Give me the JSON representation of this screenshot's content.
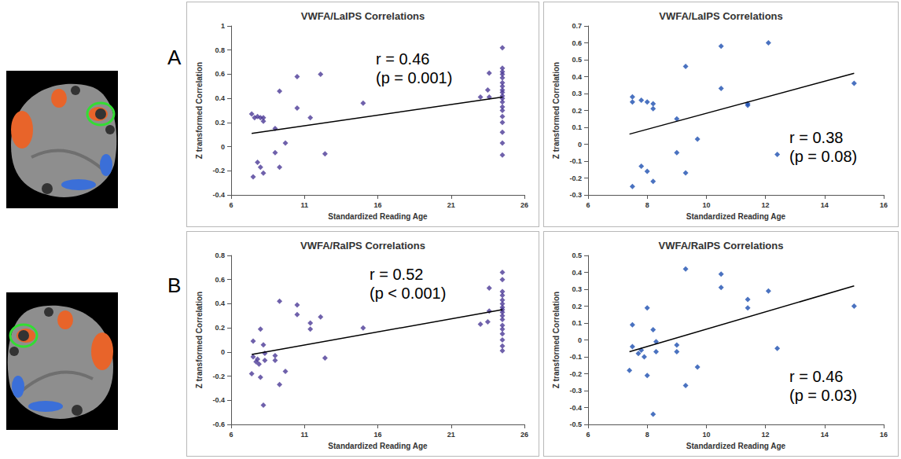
{
  "panel_letters": [
    "A",
    "B"
  ],
  "chart_data": [
    {
      "type": "scatter",
      "title": "VWFA/LaIPS Correlations",
      "x_label": "Standardized Reading Age",
      "y_label": "Z transformed Correlation",
      "xlim": [
        6,
        26
      ],
      "xticks": [
        6,
        11,
        16,
        21,
        26
      ],
      "ylim": [
        -0.4,
        1
      ],
      "yticks": [
        -0.4,
        -0.2,
        0,
        0.2,
        0.4,
        0.6,
        0.8,
        1
      ],
      "grid": false,
      "marker": "diamond",
      "annotations": [
        "r = 0.46",
        "(p = 0.001)"
      ],
      "series": [
        {
          "type": "scatter",
          "color": "#4b3a96",
          "x": [
            7.4,
            7.6,
            7.8,
            8.0,
            8.2,
            8.2,
            7.8,
            8.0,
            8.2,
            7.5,
            9.0,
            9.0,
            9.3,
            9.3,
            9.7,
            10.5,
            10.5,
            11.4,
            12.1,
            12.4,
            15.0,
            23.0,
            23.5,
            23.6,
            23.6,
            24.5,
            24.5,
            24.5,
            24.5,
            24.5,
            24.5,
            24.5,
            24.5,
            24.5,
            24.5,
            24.5,
            24.5,
            24.5,
            24.5,
            24.5,
            24.5,
            24.5,
            24.5,
            24.5
          ],
          "values": [
            0.27,
            0.24,
            0.25,
            0.24,
            0.21,
            0.24,
            -0.13,
            -0.17,
            -0.22,
            -0.25,
            0.15,
            -0.05,
            0.46,
            -0.17,
            0.03,
            0.58,
            0.32,
            0.24,
            0.6,
            -0.06,
            0.36,
            0.41,
            0.47,
            0.61,
            0.41,
            0.82,
            0.65,
            0.62,
            0.6,
            0.57,
            0.53,
            0.5,
            0.47,
            0.45,
            0.42,
            0.4,
            0.37,
            0.33,
            0.3,
            0.25,
            0.2,
            0.12,
            0.03,
            -0.07
          ]
        },
        {
          "type": "line",
          "color": "#000000",
          "line_style": "solid",
          "x": [
            7.4,
            24.5
          ],
          "values": [
            0.11,
            0.41
          ]
        }
      ]
    },
    {
      "type": "scatter",
      "title": "VWFA/LaIPS Correlations",
      "x_label": "Standardized Reading Age",
      "y_label": "Z transformed Correlation",
      "xlim": [
        6,
        16
      ],
      "xticks": [
        6,
        8,
        10,
        12,
        14,
        16
      ],
      "ylim": [
        -0.3,
        0.7
      ],
      "yticks": [
        -0.3,
        -0.2,
        -0.1,
        0,
        0.1,
        0.2,
        0.3,
        0.4,
        0.5,
        0.6,
        0.7
      ],
      "grid": false,
      "marker": "diamond",
      "annotations": [
        "r = 0.38",
        "(p = 0.08)"
      ],
      "series": [
        {
          "type": "scatter",
          "color": "#1d4fb0",
          "x": [
            7.5,
            7.5,
            7.8,
            8.0,
            8.2,
            8.2,
            7.8,
            8.0,
            8.2,
            7.5,
            9.0,
            9.0,
            9.3,
            9.3,
            9.7,
            10.5,
            10.5,
            11.4,
            11.4,
            12.1,
            12.4,
            15.0
          ],
          "values": [
            0.28,
            0.25,
            0.26,
            0.25,
            0.24,
            0.21,
            -0.13,
            -0.16,
            -0.22,
            -0.25,
            0.15,
            -0.05,
            0.46,
            -0.17,
            0.03,
            0.58,
            0.33,
            0.23,
            0.24,
            0.6,
            -0.06,
            0.36
          ]
        },
        {
          "type": "line",
          "color": "#000000",
          "line_style": "solid",
          "x": [
            7.4,
            15.0
          ],
          "values": [
            0.06,
            0.42
          ]
        }
      ]
    },
    {
      "type": "scatter",
      "title": "VWFA/RaIPS Correlations",
      "x_label": "Standardized Reading Age",
      "y_label": "Z transformed Correlation",
      "xlim": [
        6,
        26
      ],
      "xticks": [
        6,
        11,
        16,
        21,
        26
      ],
      "ylim": [
        -0.6,
        0.8
      ],
      "yticks": [
        -0.6,
        -0.4,
        -0.2,
        0,
        0.2,
        0.4,
        0.6,
        0.8
      ],
      "grid": false,
      "marker": "diamond",
      "annotations": [
        "r = 0.52",
        "(p < 0.001)"
      ],
      "series": [
        {
          "type": "scatter",
          "color": "#4b3a96",
          "x": [
            7.4,
            7.5,
            7.5,
            7.7,
            7.8,
            7.9,
            8.0,
            8.0,
            8.2,
            8.2,
            8.3,
            8.3,
            9.0,
            9.0,
            9.3,
            9.3,
            9.7,
            10.5,
            10.5,
            11.4,
            11.4,
            12.1,
            12.4,
            15.0,
            23.0,
            23.5,
            23.6,
            23.6,
            24.5,
            24.5,
            24.5,
            24.5,
            24.5,
            24.5,
            24.5,
            24.5,
            24.5,
            24.5,
            24.5,
            24.5,
            24.5,
            24.5,
            24.5,
            24.5,
            24.5
          ],
          "values": [
            -0.18,
            0.09,
            -0.04,
            -0.08,
            -0.06,
            -0.1,
            0.19,
            -0.21,
            -0.44,
            0.06,
            -0.01,
            -0.07,
            -0.03,
            -0.07,
            0.42,
            -0.27,
            -0.16,
            0.39,
            0.31,
            0.24,
            0.19,
            0.29,
            -0.05,
            0.2,
            0.23,
            0.25,
            0.53,
            0.34,
            0.66,
            0.6,
            0.5,
            0.47,
            0.43,
            0.4,
            0.37,
            0.35,
            0.33,
            0.3,
            0.27,
            0.22,
            0.19,
            0.15,
            0.1,
            0.05,
            0.01
          ]
        },
        {
          "type": "line",
          "color": "#000000",
          "line_style": "solid",
          "x": [
            7.4,
            24.5
          ],
          "values": [
            -0.02,
            0.35
          ]
        }
      ]
    },
    {
      "type": "scatter",
      "title": "VWFA/RaIPS Correlations",
      "x_label": "Standardized Reading Age",
      "y_label": "Z transformed Correlation",
      "xlim": [
        6,
        16
      ],
      "xticks": [
        6,
        8,
        10,
        12,
        14,
        16
      ],
      "ylim": [
        -0.5,
        0.5
      ],
      "yticks": [
        -0.5,
        -0.4,
        -0.3,
        -0.2,
        -0.1,
        0,
        0.1,
        0.2,
        0.3,
        0.4,
        0.5
      ],
      "grid": false,
      "marker": "diamond",
      "annotations": [
        "r = 0.46",
        "(p = 0.03)"
      ],
      "series": [
        {
          "type": "scatter",
          "color": "#1d4fb0",
          "x": [
            7.4,
            7.5,
            7.5,
            7.7,
            7.8,
            7.9,
            8.0,
            8.0,
            8.2,
            8.2,
            8.3,
            8.3,
            9.0,
            9.0,
            9.3,
            9.3,
            9.7,
            10.5,
            10.5,
            11.4,
            11.4,
            12.1,
            12.4,
            15.0
          ],
          "values": [
            -0.18,
            0.09,
            -0.04,
            -0.08,
            -0.06,
            -0.1,
            0.19,
            -0.21,
            -0.44,
            0.06,
            -0.01,
            -0.07,
            -0.03,
            -0.07,
            0.42,
            -0.27,
            -0.16,
            0.39,
            0.31,
            0.24,
            0.19,
            0.29,
            -0.05,
            0.2
          ]
        },
        {
          "type": "line",
          "color": "#000000",
          "line_style": "solid",
          "x": [
            7.4,
            15.0
          ],
          "values": [
            -0.07,
            0.32
          ]
        }
      ]
    }
  ]
}
